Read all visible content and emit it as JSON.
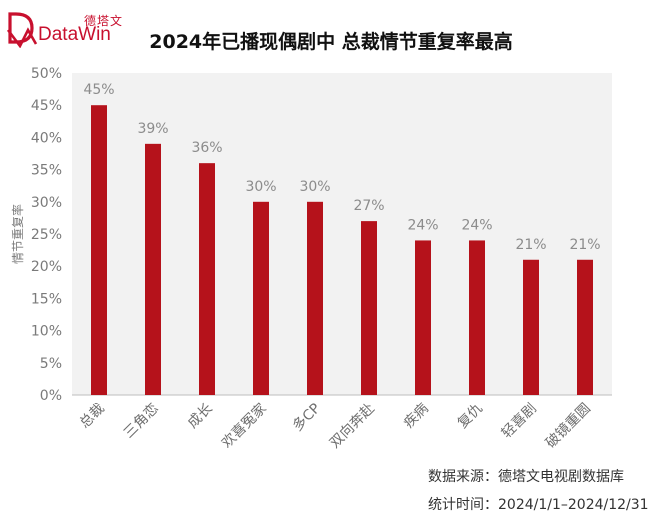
{
  "brand": {
    "cn": "德塔文",
    "en": "DataWin",
    "color": "#c8102e"
  },
  "title": "2024年已播现偶剧中  总裁情节重复率最高",
  "footer": {
    "source_label": "数据来源：",
    "source_value": "德塔文电视剧数据库",
    "period_label": "统计时间：",
    "period_value": "2024/1/1–2024/12/31"
  },
  "chart_data": {
    "type": "bar",
    "categories": [
      "总裁",
      "三角恋",
      "成长",
      "欢喜冤家",
      "多CP",
      "双向奔赴",
      "疾病",
      "复仇",
      "轻喜剧",
      "破镜重圆"
    ],
    "series": [
      {
        "values": [
          45,
          39,
          36,
          30,
          30,
          27,
          24,
          24,
          21,
          21
        ]
      }
    ],
    "data_labels": [
      "45%",
      "39%",
      "36%",
      "30%",
      "30%",
      "27%",
      "24%",
      "24%",
      "21%",
      "21%"
    ],
    "ylabel": "情节重复率",
    "xlabel": "",
    "ylim": [
      0,
      50
    ],
    "yticks": [
      0,
      5,
      10,
      15,
      20,
      25,
      30,
      35,
      40,
      45,
      50
    ],
    "ytick_labels": [
      "0%",
      "5%",
      "10%",
      "15%",
      "20%",
      "25%",
      "30%",
      "35%",
      "40%",
      "45%",
      "50%"
    ],
    "bar_color": "#b5121b",
    "plot_background": "#f2f2f2",
    "grid": false,
    "legend": "none"
  }
}
